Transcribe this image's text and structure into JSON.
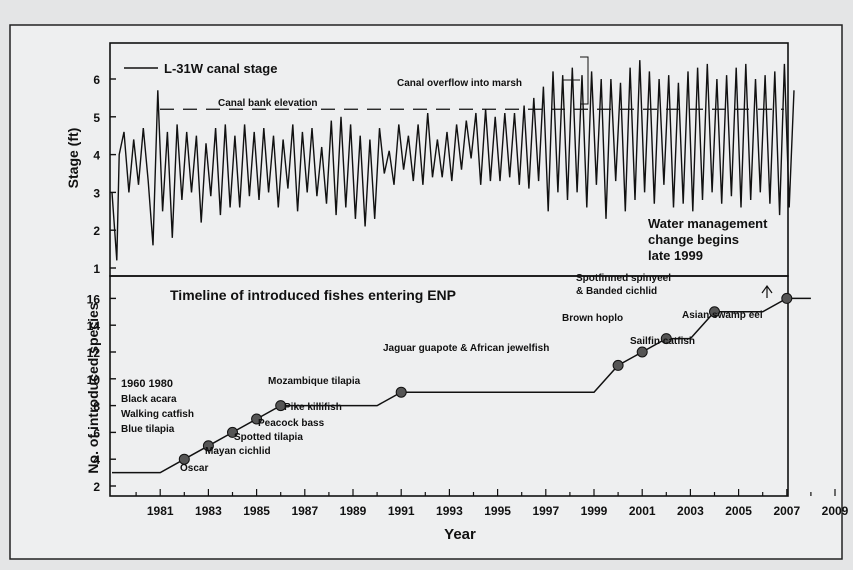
{
  "chart_data": [
    {
      "type": "line",
      "legend": "L-31W canal stage",
      "ylabel": "Stage (ft)",
      "ylim": [
        1,
        6.6
      ],
      "xlim": [
        1979,
        2008
      ],
      "yticks": [
        1,
        2,
        3,
        4,
        5,
        6
      ],
      "series": [
        {
          "name": "L-31W canal stage",
          "x": [
            1979.0,
            1979.2,
            1979.3,
            1979.5,
            1979.7,
            1979.9,
            1980.1,
            1980.3,
            1980.5,
            1980.7,
            1980.9,
            1981.1,
            1981.3,
            1981.5,
            1981.7,
            1981.9,
            1982.1,
            1982.3,
            1982.5,
            1982.7,
            1982.9,
            1983.1,
            1983.3,
            1983.5,
            1983.7,
            1983.9,
            1984.1,
            1984.3,
            1984.5,
            1984.7,
            1984.9,
            1985.1,
            1985.3,
            1985.5,
            1985.7,
            1985.9,
            1986.1,
            1986.3,
            1986.5,
            1986.7,
            1986.9,
            1987.1,
            1987.3,
            1987.5,
            1987.7,
            1987.9,
            1988.1,
            1988.3,
            1988.5,
            1988.7,
            1988.9,
            1989.1,
            1989.3,
            1989.5,
            1989.7,
            1989.9,
            1990.1,
            1990.3,
            1990.5,
            1990.7,
            1990.9,
            1991.1,
            1991.3,
            1991.5,
            1991.7,
            1991.9,
            1992.1,
            1992.3,
            1992.5,
            1992.7,
            1992.9,
            1993.1,
            1993.3,
            1993.5,
            1993.7,
            1993.9,
            1994.1,
            1994.3,
            1994.5,
            1994.7,
            1994.9,
            1995.1,
            1995.3,
            1995.5,
            1995.7,
            1995.9,
            1996.1,
            1996.3,
            1996.5,
            1996.7,
            1996.9,
            1997.1,
            1997.3,
            1997.5,
            1997.7,
            1997.9,
            1998.1,
            1998.3,
            1998.5,
            1998.7,
            1998.9,
            1999.1,
            1999.3,
            1999.5,
            1999.7,
            1999.9,
            2000.1,
            2000.3,
            2000.5,
            2000.7,
            2000.9,
            2001.1,
            2001.3,
            2001.5,
            2001.7,
            2001.9,
            2002.1,
            2002.3,
            2002.5,
            2002.7,
            2002.9,
            2003.1,
            2003.3,
            2003.5,
            2003.7,
            2003.9,
            2004.1,
            2004.3,
            2004.5,
            2004.7,
            2004.9,
            2005.1,
            2005.3,
            2005.5,
            2005.7,
            2005.9,
            2006.1,
            2006.3,
            2006.5,
            2006.7,
            2006.9,
            2007.1,
            2007.3
          ],
          "values": [
            3.0,
            1.2,
            4.0,
            4.6,
            3.0,
            4.4,
            3.2,
            4.7,
            3.3,
            1.6,
            5.7,
            2.5,
            4.6,
            1.8,
            4.8,
            2.8,
            4.6,
            3.0,
            4.5,
            2.2,
            4.3,
            2.9,
            4.7,
            2.4,
            4.8,
            2.6,
            4.5,
            2.6,
            4.8,
            2.9,
            4.6,
            2.8,
            4.7,
            3.0,
            4.5,
            2.6,
            4.4,
            3.1,
            4.8,
            2.5,
            4.6,
            3.0,
            4.7,
            2.9,
            4.2,
            2.7,
            4.9,
            2.4,
            5.0,
            2.6,
            4.8,
            2.3,
            4.5,
            2.1,
            4.4,
            2.3,
            4.7,
            3.5,
            4.1,
            3.2,
            4.8,
            3.6,
            4.5,
            3.3,
            4.8,
            3.2,
            5.1,
            3.4,
            4.4,
            3.4,
            4.6,
            3.3,
            4.8,
            3.6,
            4.9,
            3.9,
            5.1,
            3.2,
            5.2,
            3.3,
            5.0,
            3.3,
            5.1,
            3.4,
            5.1,
            3.2,
            5.3,
            3.1,
            5.5,
            3.3,
            5.8,
            2.5,
            6.2,
            3.0,
            6.1,
            2.8,
            6.3,
            3.0,
            6.1,
            2.6,
            6.2,
            3.2,
            6.0,
            2.3,
            6.0,
            3.3,
            5.9,
            2.5,
            6.3,
            2.8,
            6.5,
            3.0,
            6.2,
            2.7,
            6.0,
            3.2,
            6.1,
            2.6,
            5.9,
            2.7,
            6.2,
            2.5,
            6.3,
            2.8,
            6.4,
            3.0,
            6.0,
            2.7,
            6.1,
            2.9,
            6.3,
            2.6,
            6.4,
            2.8,
            6.0,
            3.0,
            6.1,
            2.7,
            6.2,
            2.4,
            6.4,
            2.6,
            5.7
          ]
        }
      ],
      "reference_line": {
        "label": "Canal bank elevation",
        "value": 5.2
      },
      "annotations": [
        "Canal overflow into marsh",
        "Water management change begins late 1999"
      ]
    },
    {
      "type": "line",
      "title": "Timeline of introduced fishes entering ENP",
      "xlabel": "Year",
      "ylabel": "No. of introduced species",
      "xlim": [
        1979,
        2009
      ],
      "ylim": [
        1,
        17
      ],
      "xticks": [
        "1981",
        "1983",
        "1985",
        "1987",
        "1989",
        "1991",
        "1993",
        "1995",
        "1997",
        "1999",
        "2001",
        "2003",
        "2005",
        "2007",
        "2009"
      ],
      "yticks": [
        2,
        4,
        6,
        8,
        10,
        12,
        14,
        16
      ],
      "series": [
        {
          "x": [
            1979,
            1981,
            1982,
            1983,
            1984,
            1985,
            1986,
            1990,
            1991,
            1999,
            2000,
            2001,
            2002,
            2003,
            2004,
            2006,
            2007,
            2008
          ],
          "values": [
            3,
            3,
            4,
            5,
            6,
            7,
            8,
            8,
            9,
            9,
            11,
            12,
            13,
            13,
            15,
            15,
            16,
            16
          ]
        }
      ],
      "markers": [
        {
          "x": 1982,
          "y": 4
        },
        {
          "x": 1983,
          "y": 5
        },
        {
          "x": 1984,
          "y": 6
        },
        {
          "x": 1985,
          "y": 7
        },
        {
          "x": 1986,
          "y": 8
        },
        {
          "x": 1991,
          "y": 9
        },
        {
          "x": 2000,
          "y": 11
        },
        {
          "x": 2001,
          "y": 12
        },
        {
          "x": 2002,
          "y": 13
        },
        {
          "x": 2004,
          "y": 15
        },
        {
          "x": 2007,
          "y": 16
        }
      ],
      "annotations": {
        "left_block": [
          "1960 1980",
          "Black acara",
          "Walking catfish",
          "Blue tilapia"
        ],
        "oscar": "Oscar",
        "mayan": "Mayan cichlid",
        "spotted": "Spotted tilapia",
        "peacock": "Peacock bass",
        "pike": "Pike killifish",
        "mozambique": "Mozambique tilapia",
        "jaguar": "Jaguar guapote & African jewelfish",
        "sailfin": "Sailfin catfish",
        "brown": "Brown hoplo",
        "spotfin": [
          "Spotfinned spinyeel",
          "& Banded cichlid"
        ],
        "swampeel": "Asian swamp eel"
      }
    }
  ]
}
